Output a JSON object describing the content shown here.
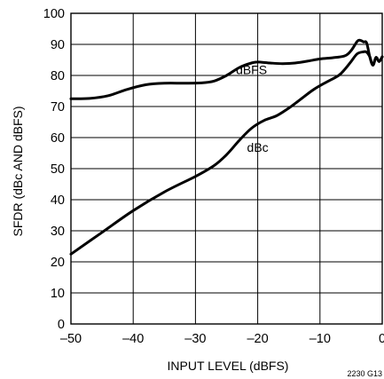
{
  "chart_data": {
    "type": "line",
    "xlabel": "INPUT LEVEL (dBFS)",
    "ylabel": "SFDR (dBc AND dBFS)",
    "xlim": [
      -50,
      0
    ],
    "ylim": [
      0,
      100
    ],
    "x_ticks": [
      -50,
      -40,
      -30,
      -20,
      -10,
      0
    ],
    "x_tick_labels": [
      "–50",
      "–40",
      "–30",
      "–20",
      "–10",
      "0"
    ],
    "y_ticks": [
      0,
      10,
      20,
      30,
      40,
      50,
      60,
      70,
      80,
      90,
      100
    ],
    "y_tick_labels": [
      "0",
      "10",
      "20",
      "30",
      "40",
      "50",
      "60",
      "70",
      "80",
      "90",
      "100"
    ],
    "grid": true,
    "figure_id": "2230 G13",
    "series": [
      {
        "name": "dBFS",
        "x": [
          -50,
          -47,
          -44,
          -41,
          -38,
          -35,
          -32,
          -29,
          -27,
          -25,
          -23,
          -21,
          -20,
          -18,
          -16,
          -14,
          -12,
          -10,
          -8,
          -6,
          -5,
          -4,
          -3.5,
          -3,
          -2.5,
          -2,
          -1.5,
          -1,
          -0.5,
          0
        ],
        "y": [
          72.5,
          72.6,
          73.5,
          75.5,
          77.0,
          77.5,
          77.5,
          77.6,
          78.2,
          80.0,
          82.5,
          84.0,
          84.3,
          84.0,
          83.8,
          84.0,
          84.6,
          85.3,
          85.7,
          86.3,
          88.0,
          91.0,
          91.3,
          90.8,
          90.5,
          86.0,
          83.3,
          85.8,
          84.5,
          86.0
        ]
      },
      {
        "name": "dBc",
        "x": [
          -50,
          -45,
          -40,
          -35,
          -30,
          -27,
          -25,
          -23,
          -21,
          -19,
          -17,
          -15,
          -13,
          -11,
          -9,
          -7,
          -6,
          -5,
          -4,
          -3,
          -2.5,
          -2,
          -1.5,
          -1,
          -0.5,
          0
        ],
        "y": [
          22.5,
          29.5,
          36.5,
          42.5,
          47.5,
          51.0,
          54.5,
          59.0,
          63.0,
          65.5,
          67.0,
          69.5,
          72.5,
          75.5,
          77.8,
          80.0,
          82.0,
          84.5,
          87.0,
          87.6,
          87.5,
          86.0,
          83.3,
          85.8,
          84.5,
          86.0
        ]
      }
    ],
    "annotations": [
      {
        "text": "dBFS",
        "x": -21,
        "y": 80.5
      },
      {
        "text": "dBc",
        "x": -20,
        "y": 55.5
      }
    ]
  }
}
